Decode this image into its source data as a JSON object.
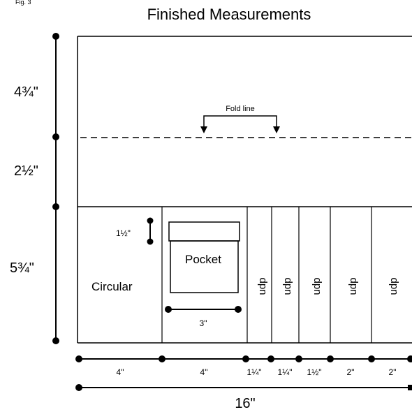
{
  "header": {
    "top_left_label": "Fig. 3",
    "title": "Finished Measurements"
  },
  "left_dimensions": {
    "upper": "4¾\"",
    "middle": "2½\"",
    "lower": "5¾\""
  },
  "fold": {
    "label": "Fold line"
  },
  "pocket": {
    "label": "Pocket",
    "height_label": "1½\"",
    "width_label": "3\""
  },
  "sections": {
    "circular": "Circular",
    "dpn": [
      "dpn",
      "dpn",
      "dpn",
      "dpn",
      "dpn"
    ]
  },
  "bottom_dimensions": {
    "segments": [
      "4\"",
      "4\"",
      "1¼\"",
      "1¼\"",
      "1½\"",
      "2\"",
      "2\""
    ],
    "total": "16\""
  }
}
